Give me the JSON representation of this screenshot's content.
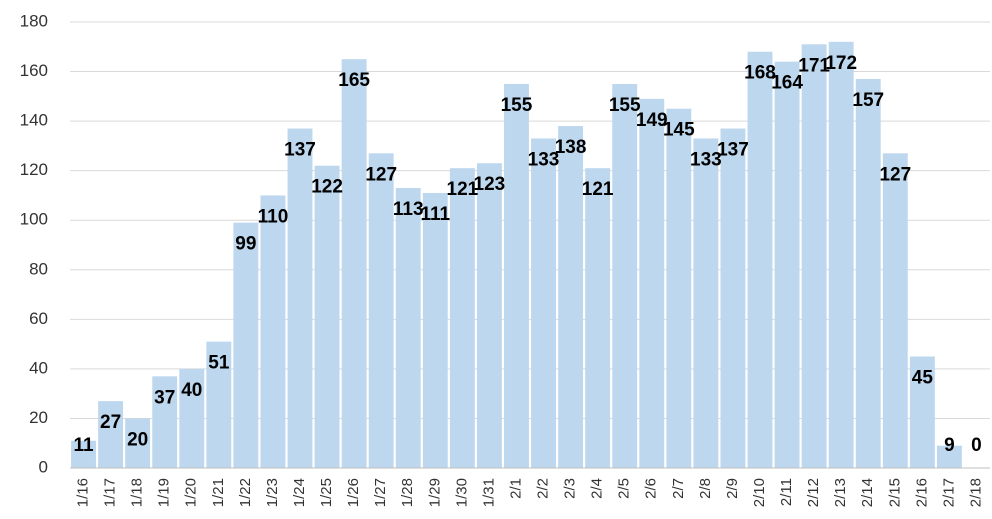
{
  "chart_data": {
    "type": "bar",
    "categories": [
      "1/16",
      "1/17",
      "1/18",
      "1/19",
      "1/20",
      "1/21",
      "1/22",
      "1/23",
      "1/24",
      "1/25",
      "1/26",
      "1/27",
      "1/28",
      "1/29",
      "1/30",
      "1/31",
      "2/1",
      "2/2",
      "2/3",
      "2/4",
      "2/5",
      "2/6",
      "2/7",
      "2/8",
      "2/9",
      "2/10",
      "2/11",
      "2/12",
      "2/13",
      "2/14",
      "2/15",
      "2/16",
      "2/17",
      "2/18"
    ],
    "values": [
      11,
      27,
      20,
      37,
      40,
      51,
      99,
      110,
      137,
      122,
      165,
      127,
      113,
      111,
      121,
      123,
      155,
      133,
      138,
      121,
      155,
      149,
      145,
      133,
      137,
      168,
      164,
      171,
      172,
      157,
      127,
      45,
      9,
      0
    ],
    "color": "#bdd7ee",
    "ylim": [
      0,
      180
    ],
    "yticks": [
      0,
      20,
      40,
      60,
      80,
      100,
      120,
      140,
      160,
      180
    ],
    "grid": true
  }
}
